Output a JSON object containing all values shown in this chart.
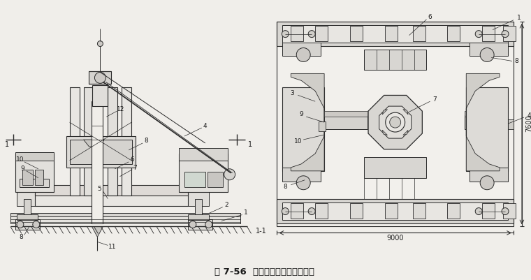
{
  "title": "图 7-56  全液压式静力压桩机压桩",
  "bg_color": "#f0eeea",
  "line_color": "#2a2a2a",
  "label_color": "#1a1a1a",
  "fig_width": 7.6,
  "fig_height": 4.01,
  "caption_1_1": "1-1",
  "dim_9000": "9000",
  "dim_7600": "7600"
}
